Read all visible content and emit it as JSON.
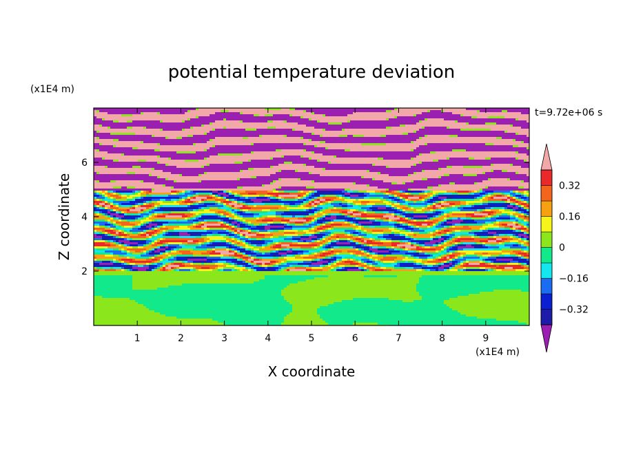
{
  "chart_data": {
    "type": "heatmap",
    "title": "potential temperature deviation",
    "time_label": "t=9.72e+06 s",
    "xlabel": "X coordinate",
    "ylabel": "Z coordinate",
    "x_unit": "(x1E4 m)",
    "y_unit": "(x1E4 m)",
    "xlim": [
      0,
      10
    ],
    "ylim": [
      0,
      8
    ],
    "x_ticks": [
      1,
      2,
      3,
      4,
      5,
      6,
      7,
      8,
      9
    ],
    "y_ticks": [
      2,
      4,
      6
    ],
    "colorbar": {
      "levels": [
        -0.4,
        -0.32,
        -0.24,
        -0.16,
        -0.08,
        0,
        0.08,
        0.16,
        0.24,
        0.32,
        0.4
      ],
      "colors": [
        "#9b1fb0",
        "#1c1ca8",
        "#0a1fd0",
        "#1a6cf0",
        "#14e6ee",
        "#12e98a",
        "#8ce61c",
        "#f5f51a",
        "#f7a112",
        "#f3641c",
        "#ea2a2a",
        "#f2a8a8"
      ],
      "tick_values": [
        0.32,
        0.16,
        0,
        -0.16,
        -0.32
      ],
      "tick_labels": [
        "0.32",
        "0.16",
        "0",
        "−0.16",
        "−0.32"
      ],
      "extend": "both"
    },
    "field_description_bands": [
      {
        "z_range": [
          0,
          2
        ],
        "pattern": "calm mix of green (0 to 0.08) and cyan-green (-0.08 to 0)"
      },
      {
        "z_range": [
          2,
          5
        ],
        "pattern": "turbulent layered mix of all levels"
      },
      {
        "z_range": [
          5,
          8
        ],
        "pattern": "alternating stripes of pink (>0.4) and purple (<-0.4)"
      }
    ]
  }
}
